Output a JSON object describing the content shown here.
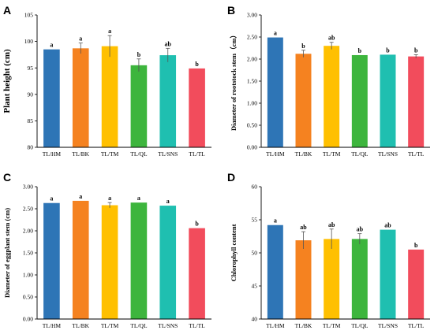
{
  "colors": [
    "#2E75B6",
    "#F58220",
    "#FFC000",
    "#3DB53D",
    "#1FBFB0",
    "#F24C5C"
  ],
  "chart_data": [
    {
      "panel": "A",
      "type": "bar",
      "title": "",
      "xlabel": "",
      "ylabel": "Plant height (cm)",
      "categories": [
        "TL/HM",
        "TL/BK",
        "TL/TM",
        "TL/QL",
        "TL/SNS",
        "TL/TL"
      ],
      "values": [
        98.5,
        98.7,
        99.1,
        95.5,
        97.4,
        94.9
      ],
      "errors": [
        0,
        1.0,
        2.0,
        1.2,
        1.3,
        0
      ],
      "significance": [
        "a",
        "a",
        "a",
        "b",
        "ab",
        "b"
      ],
      "ylim": [
        80,
        105
      ],
      "yticks": [
        "80",
        "85",
        "90",
        "95",
        "100",
        "105"
      ],
      "grid": false
    },
    {
      "panel": "B",
      "type": "bar",
      "title": "",
      "xlabel": "",
      "ylabel": "Diameter of rootstock stem（cm）",
      "categories": [
        "TL/HM",
        "TL/BK",
        "TL/TM",
        "TL/QL",
        "TL/SNS",
        "TL/TL"
      ],
      "values": [
        2.49,
        2.12,
        2.3,
        2.09,
        2.1,
        2.06
      ],
      "errors": [
        0,
        0.08,
        0.08,
        0,
        0,
        0.04
      ],
      "significance": [
        "a",
        "b",
        "ab",
        "b",
        "b",
        "b"
      ],
      "ylim": [
        0,
        3
      ],
      "yticks": [
        "0.00",
        "0.50",
        "1.00",
        "1.50",
        "2.00",
        "2.50",
        "3.00"
      ],
      "grid": false
    },
    {
      "panel": "C",
      "type": "bar",
      "title": "",
      "xlabel": "",
      "ylabel": "Diameter of eggplant stem (cm)",
      "categories": [
        "TL/HM",
        "TL/BK",
        "TL/TM",
        "TL/QL",
        "TL/SNS",
        "TL/TL"
      ],
      "values": [
        2.63,
        2.68,
        2.58,
        2.64,
        2.57,
        2.06
      ],
      "errors": [
        0,
        0,
        0.06,
        0,
        0,
        0
      ],
      "significance": [
        "a",
        "a",
        "a",
        "a",
        "a",
        "b"
      ],
      "ylim": [
        0,
        3
      ],
      "yticks": [
        "0.00",
        "0.50",
        "1.00",
        "1.50",
        "2.00",
        "2.50",
        "3.00"
      ],
      "grid": false
    },
    {
      "panel": "D",
      "type": "bar",
      "title": "",
      "xlabel": "",
      "ylabel": "Chlorophyll content",
      "categories": [
        "TL/HM",
        "TL/BK",
        "TL/TM",
        "TL/QL",
        "TL/SNS",
        "TL/TL"
      ],
      "values": [
        54.2,
        51.9,
        52.1,
        52.1,
        53.5,
        50.5
      ],
      "errors": [
        0,
        1.3,
        1.5,
        0.8,
        0,
        0
      ],
      "significance": [
        "a",
        "ab",
        "ab",
        "ab",
        "ab",
        "b"
      ],
      "ylim": [
        40,
        60
      ],
      "yticks": [
        "40",
        "45",
        "50",
        "55",
        "60"
      ],
      "grid": false
    }
  ]
}
